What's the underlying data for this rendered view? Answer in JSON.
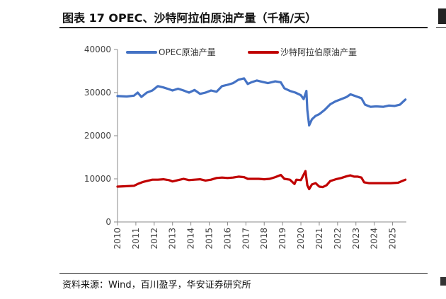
{
  "figure": {
    "title": "图表 17 OPEC、沙特阿拉伯原油产量（千桶/天）",
    "source": "资料来源：Wind，百川盈孚，华安证券研究所"
  },
  "chart_data": {
    "type": "line",
    "title": "",
    "xlabel": "",
    "ylabel": "",
    "ylim": [
      0,
      40000
    ],
    "yticks": [
      0,
      10000,
      20000,
      30000,
      40000
    ],
    "xlim": [
      2010,
      2025.75
    ],
    "xticks": [
      "2010",
      "2011",
      "2012",
      "2013",
      "2014",
      "2015",
      "2016",
      "2017",
      "2018",
      "2019",
      "2020",
      "2021",
      "2022",
      "2023",
      "2024",
      "2025"
    ],
    "grid": false,
    "legend": "top",
    "series": [
      {
        "name": "OPEC原油产量",
        "color": "#4472C4",
        "points": [
          [
            2010,
            29200
          ],
          [
            2010.5,
            29100
          ],
          [
            2010.9,
            29300
          ],
          [
            2011.1,
            30000
          ],
          [
            2011.3,
            29000
          ],
          [
            2011.6,
            30000
          ],
          [
            2011.9,
            30500
          ],
          [
            2012.2,
            31500
          ],
          [
            2012.5,
            31200
          ],
          [
            2012.8,
            30800
          ],
          [
            2013.0,
            30500
          ],
          [
            2013.3,
            30900
          ],
          [
            2013.6,
            30500
          ],
          [
            2013.9,
            30000
          ],
          [
            2014.2,
            30600
          ],
          [
            2014.5,
            29700
          ],
          [
            2014.8,
            30000
          ],
          [
            2015.1,
            30500
          ],
          [
            2015.4,
            30200
          ],
          [
            2015.7,
            31500
          ],
          [
            2016.0,
            31800
          ],
          [
            2016.3,
            32200
          ],
          [
            2016.6,
            33000
          ],
          [
            2016.9,
            33300
          ],
          [
            2017.1,
            32000
          ],
          [
            2017.3,
            32400
          ],
          [
            2017.6,
            32800
          ],
          [
            2017.9,
            32500
          ],
          [
            2018.2,
            32200
          ],
          [
            2018.6,
            32600
          ],
          [
            2018.9,
            32400
          ],
          [
            2019.1,
            31000
          ],
          [
            2019.4,
            30400
          ],
          [
            2019.7,
            30000
          ],
          [
            2020.0,
            29400
          ],
          [
            2020.15,
            28500
          ],
          [
            2020.3,
            30400
          ],
          [
            2020.35,
            26000
          ],
          [
            2020.45,
            22400
          ],
          [
            2020.6,
            23800
          ],
          [
            2020.8,
            24600
          ],
          [
            2021.0,
            25000
          ],
          [
            2021.3,
            26000
          ],
          [
            2021.6,
            27300
          ],
          [
            2021.9,
            28000
          ],
          [
            2022.2,
            28500
          ],
          [
            2022.5,
            29000
          ],
          [
            2022.7,
            29600
          ],
          [
            2022.9,
            29300
          ],
          [
            2023.1,
            29000
          ],
          [
            2023.3,
            28700
          ],
          [
            2023.5,
            27200
          ],
          [
            2023.8,
            26700
          ],
          [
            2024.1,
            26800
          ],
          [
            2024.5,
            26700
          ],
          [
            2024.8,
            27000
          ],
          [
            2025.1,
            26900
          ],
          [
            2025.4,
            27200
          ],
          [
            2025.7,
            28400
          ]
        ]
      },
      {
        "name": "沙特阿拉伯原油产量",
        "color": "#C00000",
        "points": [
          [
            2010,
            8200
          ],
          [
            2010.5,
            8300
          ],
          [
            2010.9,
            8400
          ],
          [
            2011.1,
            8800
          ],
          [
            2011.4,
            9300
          ],
          [
            2011.6,
            9500
          ],
          [
            2011.9,
            9800
          ],
          [
            2012.2,
            9800
          ],
          [
            2012.5,
            9900
          ],
          [
            2012.8,
            9700
          ],
          [
            2013.0,
            9400
          ],
          [
            2013.3,
            9700
          ],
          [
            2013.6,
            10000
          ],
          [
            2013.9,
            9700
          ],
          [
            2014.2,
            9800
          ],
          [
            2014.5,
            9900
          ],
          [
            2014.8,
            9600
          ],
          [
            2015.1,
            9800
          ],
          [
            2015.4,
            10200
          ],
          [
            2015.7,
            10300
          ],
          [
            2016.0,
            10200
          ],
          [
            2016.3,
            10300
          ],
          [
            2016.6,
            10500
          ],
          [
            2016.9,
            10400
          ],
          [
            2017.1,
            10000
          ],
          [
            2017.4,
            10000
          ],
          [
            2017.7,
            10000
          ],
          [
            2018.0,
            9900
          ],
          [
            2018.3,
            10000
          ],
          [
            2018.6,
            10400
          ],
          [
            2018.9,
            10900
          ],
          [
            2019.1,
            10000
          ],
          [
            2019.4,
            9800
          ],
          [
            2019.65,
            8800
          ],
          [
            2019.75,
            9800
          ],
          [
            2020.0,
            9700
          ],
          [
            2020.25,
            11800
          ],
          [
            2020.35,
            8500
          ],
          [
            2020.45,
            7600
          ],
          [
            2020.6,
            8700
          ],
          [
            2020.8,
            9000
          ],
          [
            2021.0,
            8200
          ],
          [
            2021.2,
            8100
          ],
          [
            2021.4,
            8500
          ],
          [
            2021.6,
            9500
          ],
          [
            2021.9,
            9900
          ],
          [
            2022.2,
            10200
          ],
          [
            2022.5,
            10600
          ],
          [
            2022.7,
            10800
          ],
          [
            2022.9,
            10500
          ],
          [
            2023.1,
            10500
          ],
          [
            2023.3,
            10300
          ],
          [
            2023.45,
            9200
          ],
          [
            2023.7,
            9000
          ],
          [
            2024.0,
            9000
          ],
          [
            2024.5,
            9000
          ],
          [
            2024.9,
            9000
          ],
          [
            2025.3,
            9100
          ],
          [
            2025.7,
            9800
          ]
        ]
      }
    ]
  }
}
